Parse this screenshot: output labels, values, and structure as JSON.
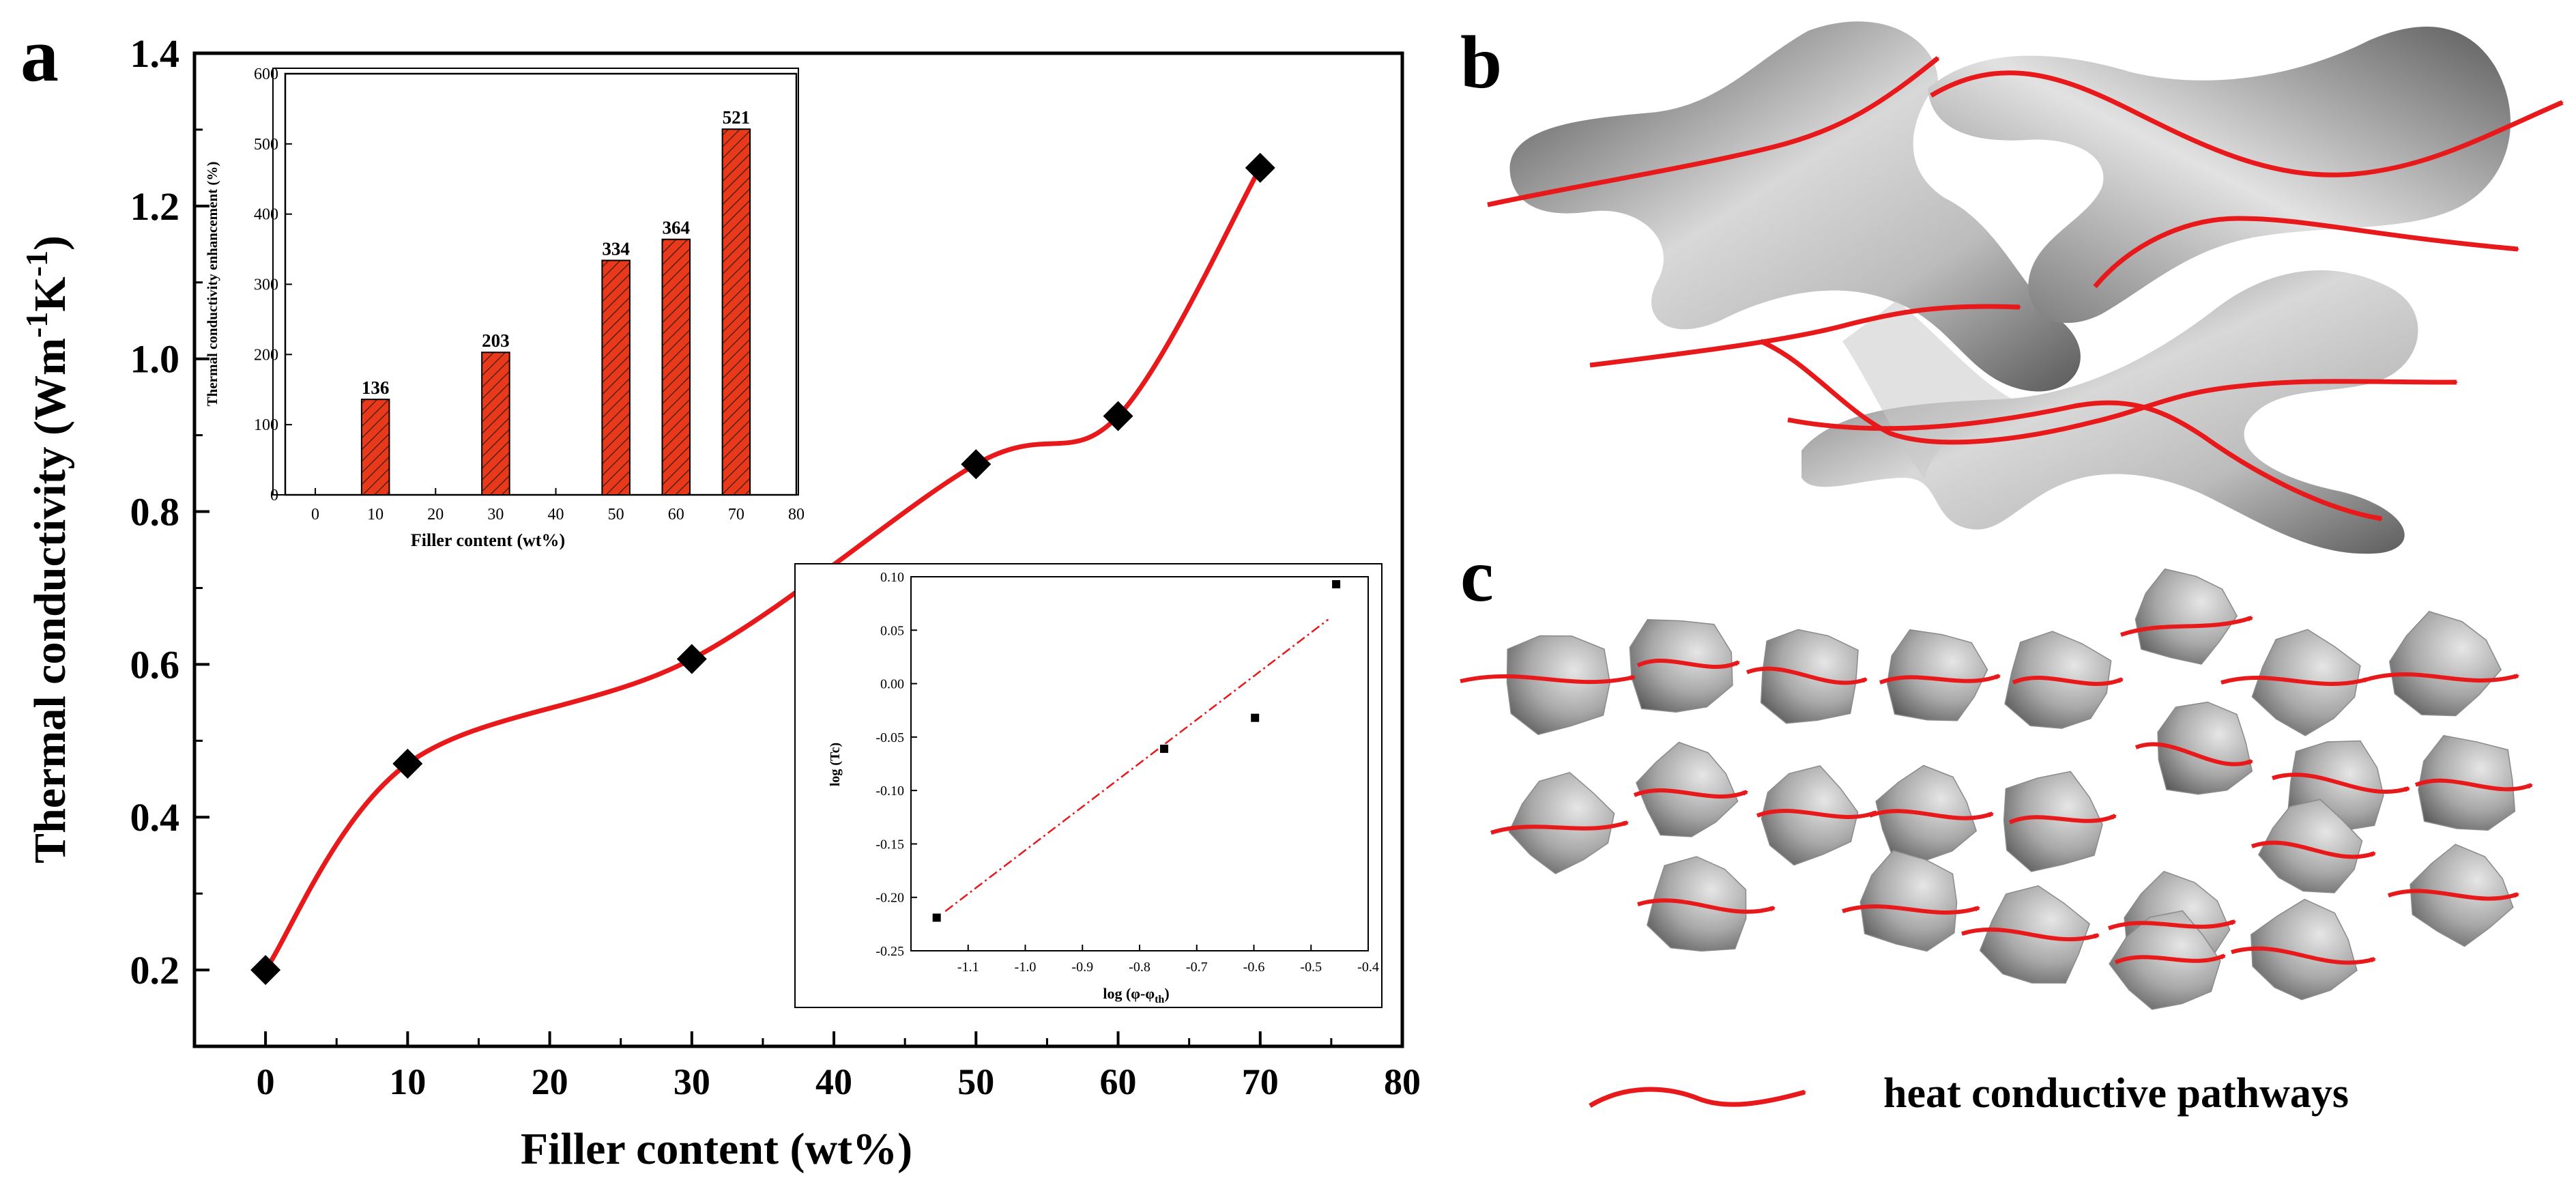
{
  "panels": {
    "a": "a",
    "b": "b",
    "c": "c"
  },
  "legend": {
    "label": "heat conductive pathways",
    "color": "#e8191b"
  },
  "chart_data": [
    {
      "type": "scatter",
      "title": "",
      "xlabel": "Filler content (wt%)",
      "ylabel_main": "Thermal conductivity (Wm",
      "ylabel_sup1": "-1",
      "ylabel_mid": "K",
      "ylabel_sup2": "-1",
      "ylabel_close": ")",
      "xlim": [
        -5,
        80
      ],
      "ylim": [
        0.1,
        1.4
      ],
      "xticks": [
        0,
        10,
        20,
        30,
        40,
        50,
        60,
        70,
        80
      ],
      "yticks": [
        0.2,
        0.4,
        0.6,
        0.8,
        1.0,
        1.2,
        1.4
      ],
      "ytick_labels": [
        "0.2",
        "0.4",
        "0.6",
        "0.8",
        "1.0",
        "1.2",
        "1.4"
      ],
      "x": [
        0,
        10,
        30,
        50,
        60,
        70
      ],
      "y": [
        0.2,
        0.47,
        0.607,
        0.862,
        0.925,
        1.25
      ],
      "fit_color": "#e8191b",
      "marker": "diamond"
    },
    {
      "type": "bar",
      "xlabel": "Filler content (wt%)",
      "ylabel": "Thermal conductivity enhancement (%)",
      "xlim": [
        -5,
        80
      ],
      "ylim": [
        0,
        600
      ],
      "xticks": [
        0,
        10,
        20,
        30,
        40,
        50,
        60,
        70,
        80
      ],
      "yticks": [
        0,
        100,
        200,
        300,
        400,
        500,
        600
      ],
      "categories": [
        10,
        30,
        50,
        60,
        70
      ],
      "values": [
        136,
        203,
        334,
        364,
        521
      ],
      "labels": [
        "136",
        "203",
        "334",
        "364",
        "521"
      ],
      "bar_color": "#e8391b",
      "hatch": "diagonal"
    },
    {
      "type": "scatter",
      "xlabel_main": "log (φ-φ",
      "xlabel_sub": "th",
      "xlabel_close": ")",
      "ylabel": "log (Tc)",
      "xlim": [
        -1.2,
        -0.4
      ],
      "ylim": [
        -0.25,
        0.1
      ],
      "xticks": [
        -1.1,
        -1.0,
        -0.9,
        -0.8,
        -0.7,
        -0.6,
        -0.5,
        -0.4
      ],
      "xtick_labels": [
        "-1.1",
        "-1.0",
        "-0.9",
        "-0.8",
        "-0.7",
        "-0.6",
        "-0.5",
        "-0.4"
      ],
      "yticks": [
        -0.25,
        -0.2,
        -0.15,
        -0.1,
        -0.05,
        0.0,
        0.05,
        0.1
      ],
      "ytick_labels": [
        "-0.25",
        "-0.20",
        "-0.15",
        "-0.10",
        "-0.05",
        "0.00",
        "0.05",
        "0.10"
      ],
      "x": [
        -1.155,
        -0.757,
        -0.598,
        -0.456
      ],
      "y": [
        -0.219,
        -0.061,
        -0.032,
        0.093
      ],
      "fit": {
        "x": [
          -1.14,
          -0.47
        ],
        "y": [
          -0.213,
          0.06
        ],
        "style": "dash-dot",
        "color": "#e8191b"
      }
    }
  ]
}
